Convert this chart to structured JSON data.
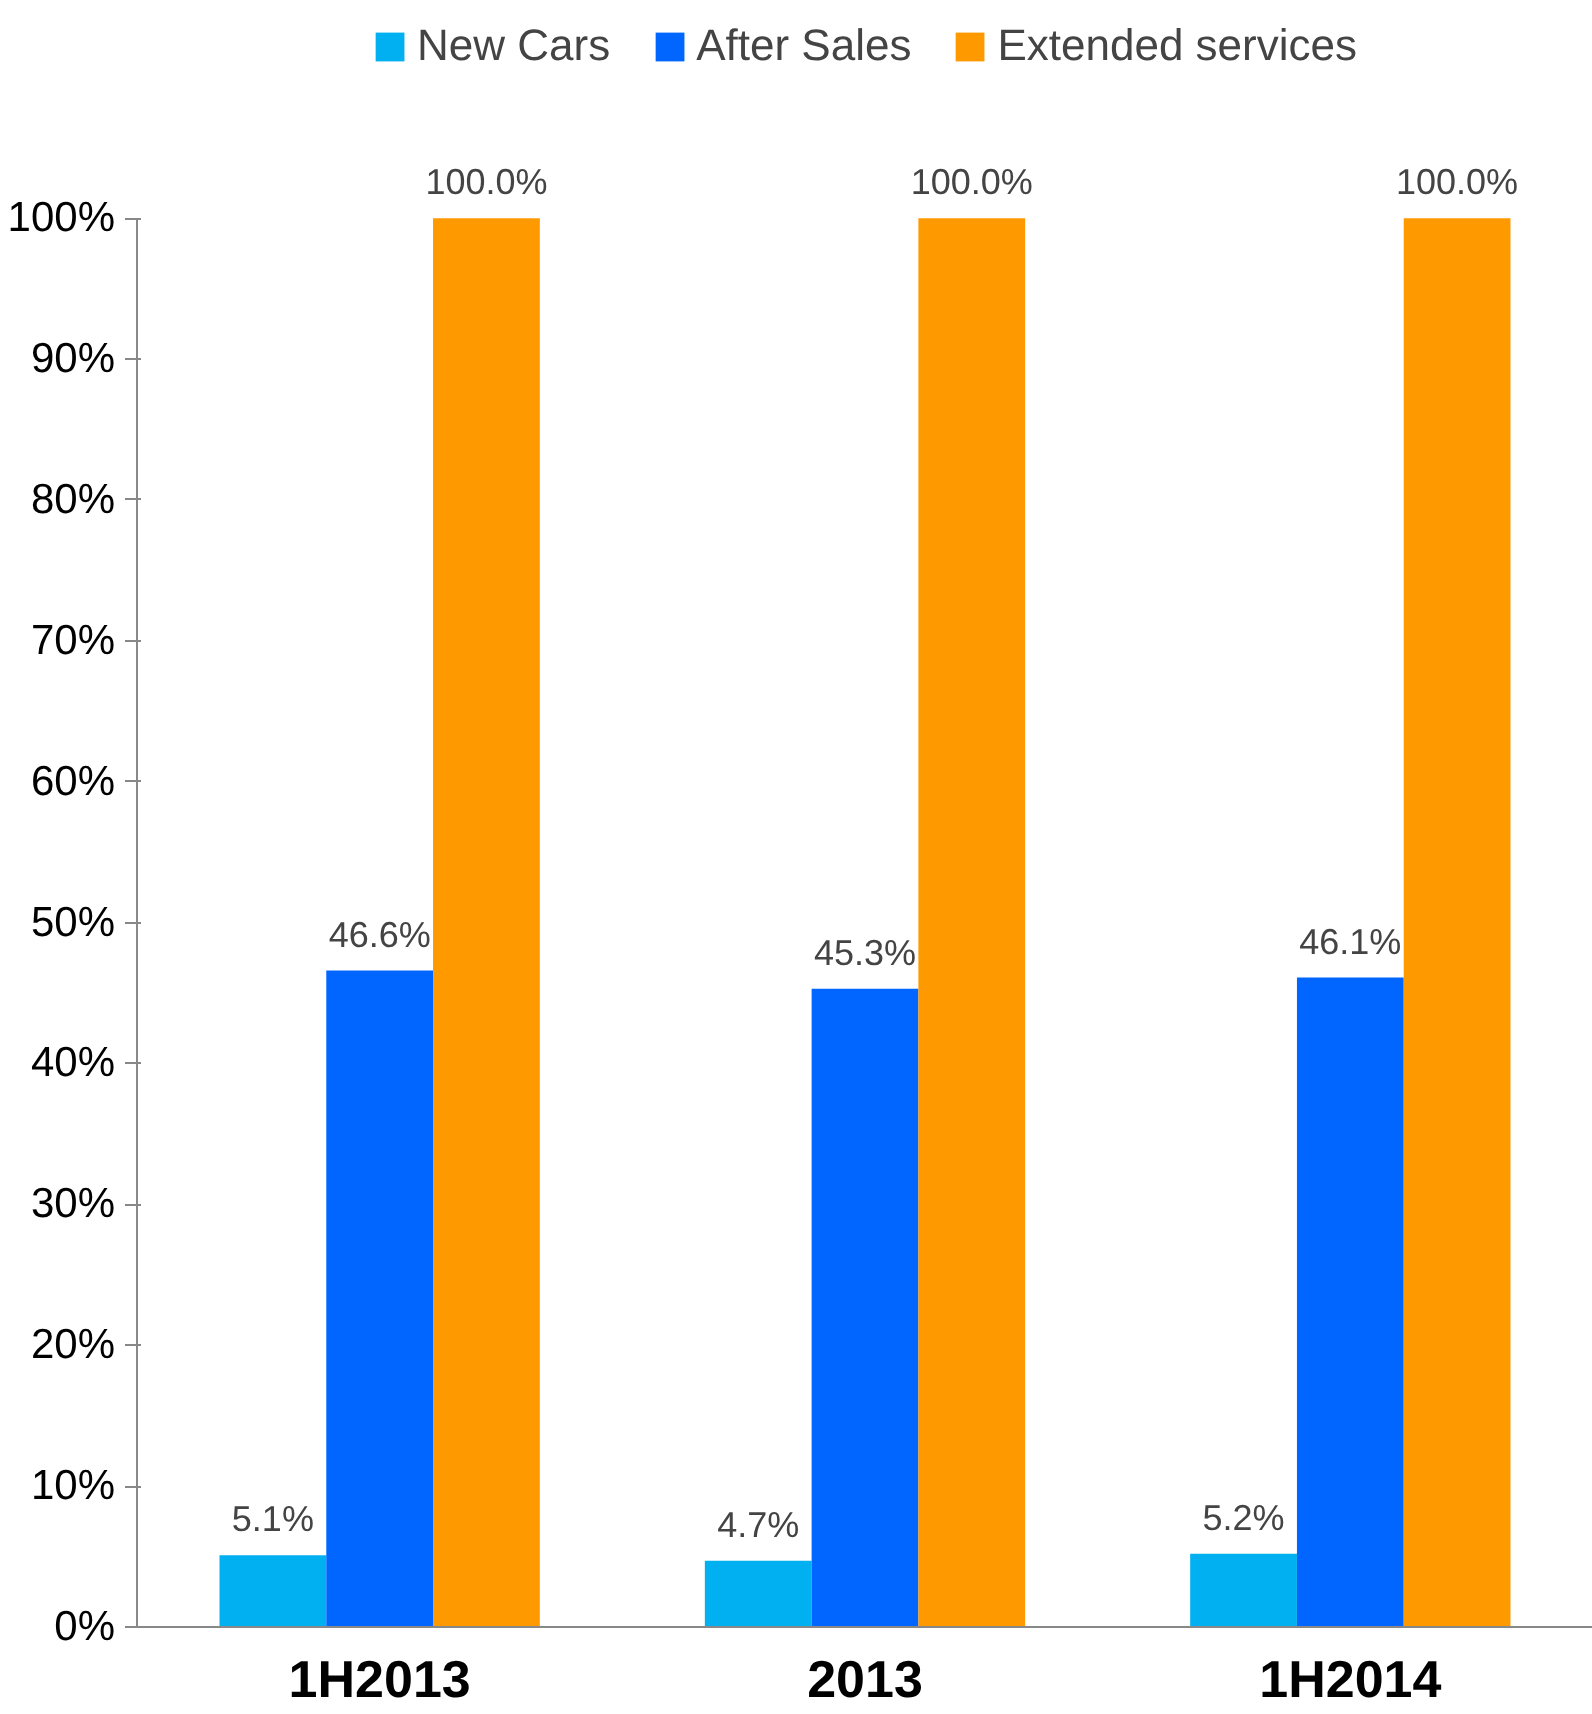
{
  "chart_data": {
    "type": "bar",
    "categories": [
      "1H2013",
      "2013",
      "1H2014"
    ],
    "series": [
      {
        "name": "New Cars",
        "color": "#00b0f0",
        "values": [
          5.1,
          4.7,
          5.2
        ],
        "value_labels": [
          "5.1%",
          "4.7%",
          "5.2%"
        ]
      },
      {
        "name": "After Sales",
        "color": "#0066ff",
        "values": [
          46.6,
          45.3,
          46.1
        ],
        "value_labels": [
          "46.6%",
          "45.3%",
          "46.1%"
        ]
      },
      {
        "name": "Extended services",
        "color": "#ff9900",
        "values": [
          100.0,
          100.0,
          100.0
        ],
        "value_labels": [
          "100.0%",
          "100.0%",
          "100.0%"
        ]
      }
    ],
    "ylim": [
      0,
      100
    ],
    "yticks": [
      {
        "value": 0,
        "label": "0%"
      },
      {
        "value": 10,
        "label": "10%"
      },
      {
        "value": 20,
        "label": "20%"
      },
      {
        "value": 30,
        "label": "30%"
      },
      {
        "value": 40,
        "label": "40%"
      },
      {
        "value": 50,
        "label": "50%"
      },
      {
        "value": 60,
        "label": "60%"
      },
      {
        "value": 70,
        "label": "70%"
      },
      {
        "value": 80,
        "label": "80%"
      },
      {
        "value": 90,
        "label": "90%"
      },
      {
        "value": 100,
        "label": "100%"
      }
    ],
    "grid": false,
    "legend": "top"
  }
}
